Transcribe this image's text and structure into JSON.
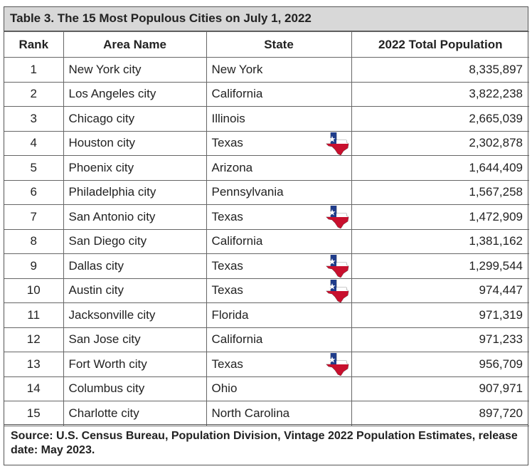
{
  "title": "Table 3. The 15 Most Populous Cities on July 1, 2022",
  "headers": [
    "Rank",
    "Area Name",
    "State",
    "2022 Total Population"
  ],
  "rows": [
    {
      "rank": "1",
      "name": "New York city",
      "state": "New York",
      "pop": "8,335,897",
      "flag": false
    },
    {
      "rank": "2",
      "name": "Los Angeles city",
      "state": "California",
      "pop": "3,822,238",
      "flag": false
    },
    {
      "rank": "3",
      "name": "Chicago city",
      "state": "Illinois",
      "pop": "2,665,039",
      "flag": false
    },
    {
      "rank": "4",
      "name": "Houston city",
      "state": "Texas",
      "pop": "2,302,878",
      "flag": true
    },
    {
      "rank": "5",
      "name": "Phoenix city",
      "state": "Arizona",
      "pop": "1,644,409",
      "flag": false
    },
    {
      "rank": "6",
      "name": "Philadelphia city",
      "state": "Pennsylvania",
      "pop": "1,567,258",
      "flag": false
    },
    {
      "rank": "7",
      "name": "San Antonio city",
      "state": "Texas",
      "pop": "1,472,909",
      "flag": true
    },
    {
      "rank": "8",
      "name": "San Diego city",
      "state": "California",
      "pop": "1,381,162",
      "flag": false
    },
    {
      "rank": "9",
      "name": "Dallas city",
      "state": "Texas",
      "pop": "1,299,544",
      "flag": true
    },
    {
      "rank": "10",
      "name": "Austin city",
      "state": "Texas",
      "pop": "974,447",
      "flag": true
    },
    {
      "rank": "11",
      "name": "Jacksonville city",
      "state": "Florida",
      "pop": "971,319",
      "flag": false
    },
    {
      "rank": "12",
      "name": "San Jose city",
      "state": "California",
      "pop": "971,233",
      "flag": false
    },
    {
      "rank": "13",
      "name": "Fort Worth city",
      "state": "Texas",
      "pop": "956,709",
      "flag": true
    },
    {
      "rank": "14",
      "name": "Columbus city",
      "state": "Ohio",
      "pop": "907,971",
      "flag": false
    },
    {
      "rank": "15",
      "name": "Charlotte city",
      "state": "North Carolina",
      "pop": "897,720",
      "flag": false
    }
  ],
  "source": "Source: U.S. Census Bureau, Population Division, Vintage 2022 Population Estimates, release date: May 2023.",
  "flag_icon": "texas-flag-icon",
  "colors": {
    "header_bg": "#d8d8d8",
    "texas_blue": "#1f3c8a",
    "texas_red": "#c8102e"
  }
}
